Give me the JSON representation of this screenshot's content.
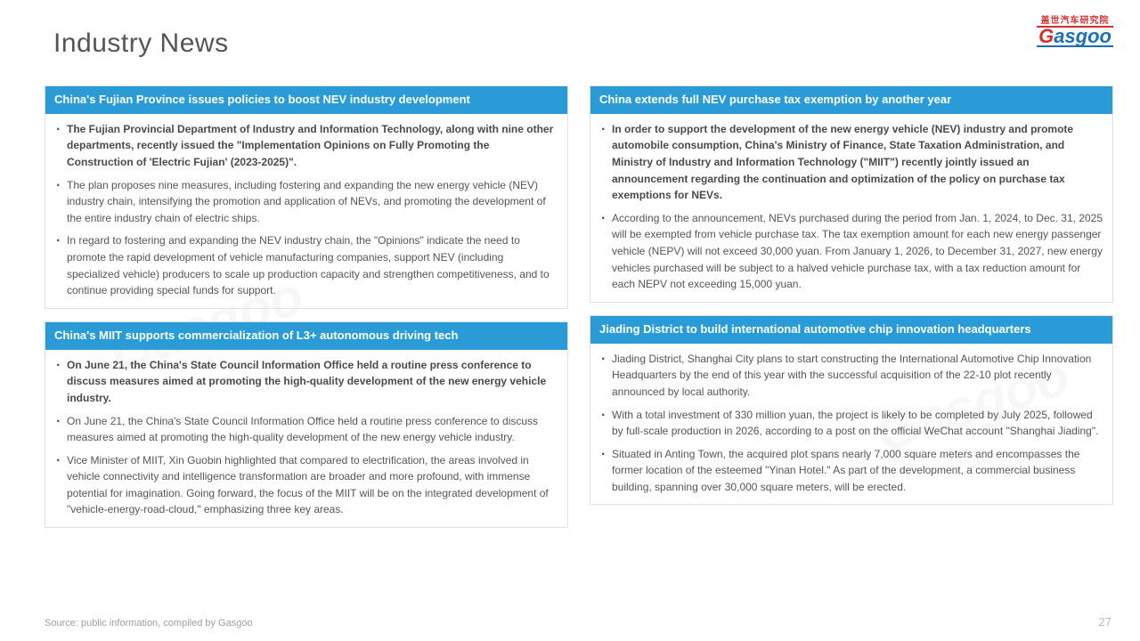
{
  "page": {
    "title": "Industry News",
    "source": "Source: public information, compiled by Gasgoo",
    "page_number": "27"
  },
  "logo": {
    "top_text": "盖世汽车研究院",
    "brand_g": "G",
    "brand_rest": "asgoo"
  },
  "colors": {
    "header_bg": "#2b9bd8",
    "header_text": "#ffffff",
    "body_text": "#555555",
    "title_text": "#555555",
    "border": "#e0e0e0",
    "logo_red": "#d32f2f",
    "logo_blue": "#1a6fb5"
  },
  "cards": {
    "c1": {
      "title": "China's Fujian Province issues policies to boost NEV industry development",
      "bullets": [
        {
          "bold": true,
          "text": "The Fujian Provincial Department of Industry and Information Technology, along with nine other departments, recently issued the \"Implementation Opinions on Fully Promoting the Construction of 'Electric Fujian' (2023-2025)\"."
        },
        {
          "bold": false,
          "text": "The plan proposes nine measures, including fostering and expanding the new energy vehicle (NEV) industry chain, intensifying the promotion and application of NEVs, and promoting the development of the entire industry chain of electric ships."
        },
        {
          "bold": false,
          "text": "In regard to fostering and expanding the NEV industry chain, the \"Opinions\" indicate the need to promote the rapid development of vehicle manufacturing companies, support NEV (including specialized vehicle) producers to scale up production capacity and strengthen competitiveness, and to continue providing special funds for support."
        }
      ]
    },
    "c2": {
      "title": "China extends full NEV purchase tax exemption by another year",
      "bullets": [
        {
          "bold": true,
          "text": "In order to support the development of the new energy vehicle (NEV) industry and promote automobile consumption, China's Ministry of Finance, State Taxation Administration, and Ministry of Industry and Information Technology (\"MIIT\") recently jointly issued an announcement regarding the continuation and optimization of the policy on purchase tax exemptions for NEVs."
        },
        {
          "bold": false,
          "text": "According to the announcement, NEVs purchased during the period from Jan. 1, 2024, to Dec. 31, 2025 will be exempted from vehicle purchase tax. The tax exemption amount for each new energy passenger vehicle (NEPV) will not exceed 30,000 yuan. From January 1, 2026, to December 31, 2027, new energy vehicles purchased will be subject to a halved vehicle purchase tax, with a tax reduction amount for each NEPV not exceeding 15,000 yuan."
        }
      ]
    },
    "c3": {
      "title": "China's MIIT supports commercialization of L3+ autonomous driving tech",
      "bullets": [
        {
          "bold": true,
          "text": "On June 21, the China's State Council Information Office held a routine press conference to discuss measures aimed at promoting the high-quality development of the new energy vehicle industry."
        },
        {
          "bold": false,
          "text": "On June 21, the China's State Council Information Office held a routine press conference to discuss measures aimed at promoting the high-quality development of the new energy vehicle industry."
        },
        {
          "bold": false,
          "text": "Vice Minister of MIIT, Xin Guobin highlighted that compared to electrification, the areas involved in vehicle connectivity and intelligence transformation are broader and more profound, with immense potential for imagination. Going forward, the focus of the MIIT will be on the integrated development of \"vehicle-energy-road-cloud,\" emphasizing three key areas."
        }
      ]
    },
    "c4": {
      "title": "Jiading District to build international automotive chip innovation headquarters",
      "bullets": [
        {
          "bold": false,
          "text": "Jiading District, Shanghai City plans to start constructing the International Automotive Chip Innovation Headquarters by the end of this year with the successful acquisition of the 22-10 plot recently announced by local authority."
        },
        {
          "bold": false,
          "text": "With a total investment of 330 million yuan, the project is likely to be completed by July 2025, followed by full-scale production in 2026, according to a post on the official WeChat account \"Shanghai Jiading\"."
        },
        {
          "bold": false,
          "text": "Situated in Anting Town, the acquired plot spans nearly 7,000 square meters and encompasses the former location of the esteemed \"Yinan Hotel.\" As part of the development, a commercial business building, spanning over 30,000 square meters, will be erected."
        }
      ]
    }
  }
}
